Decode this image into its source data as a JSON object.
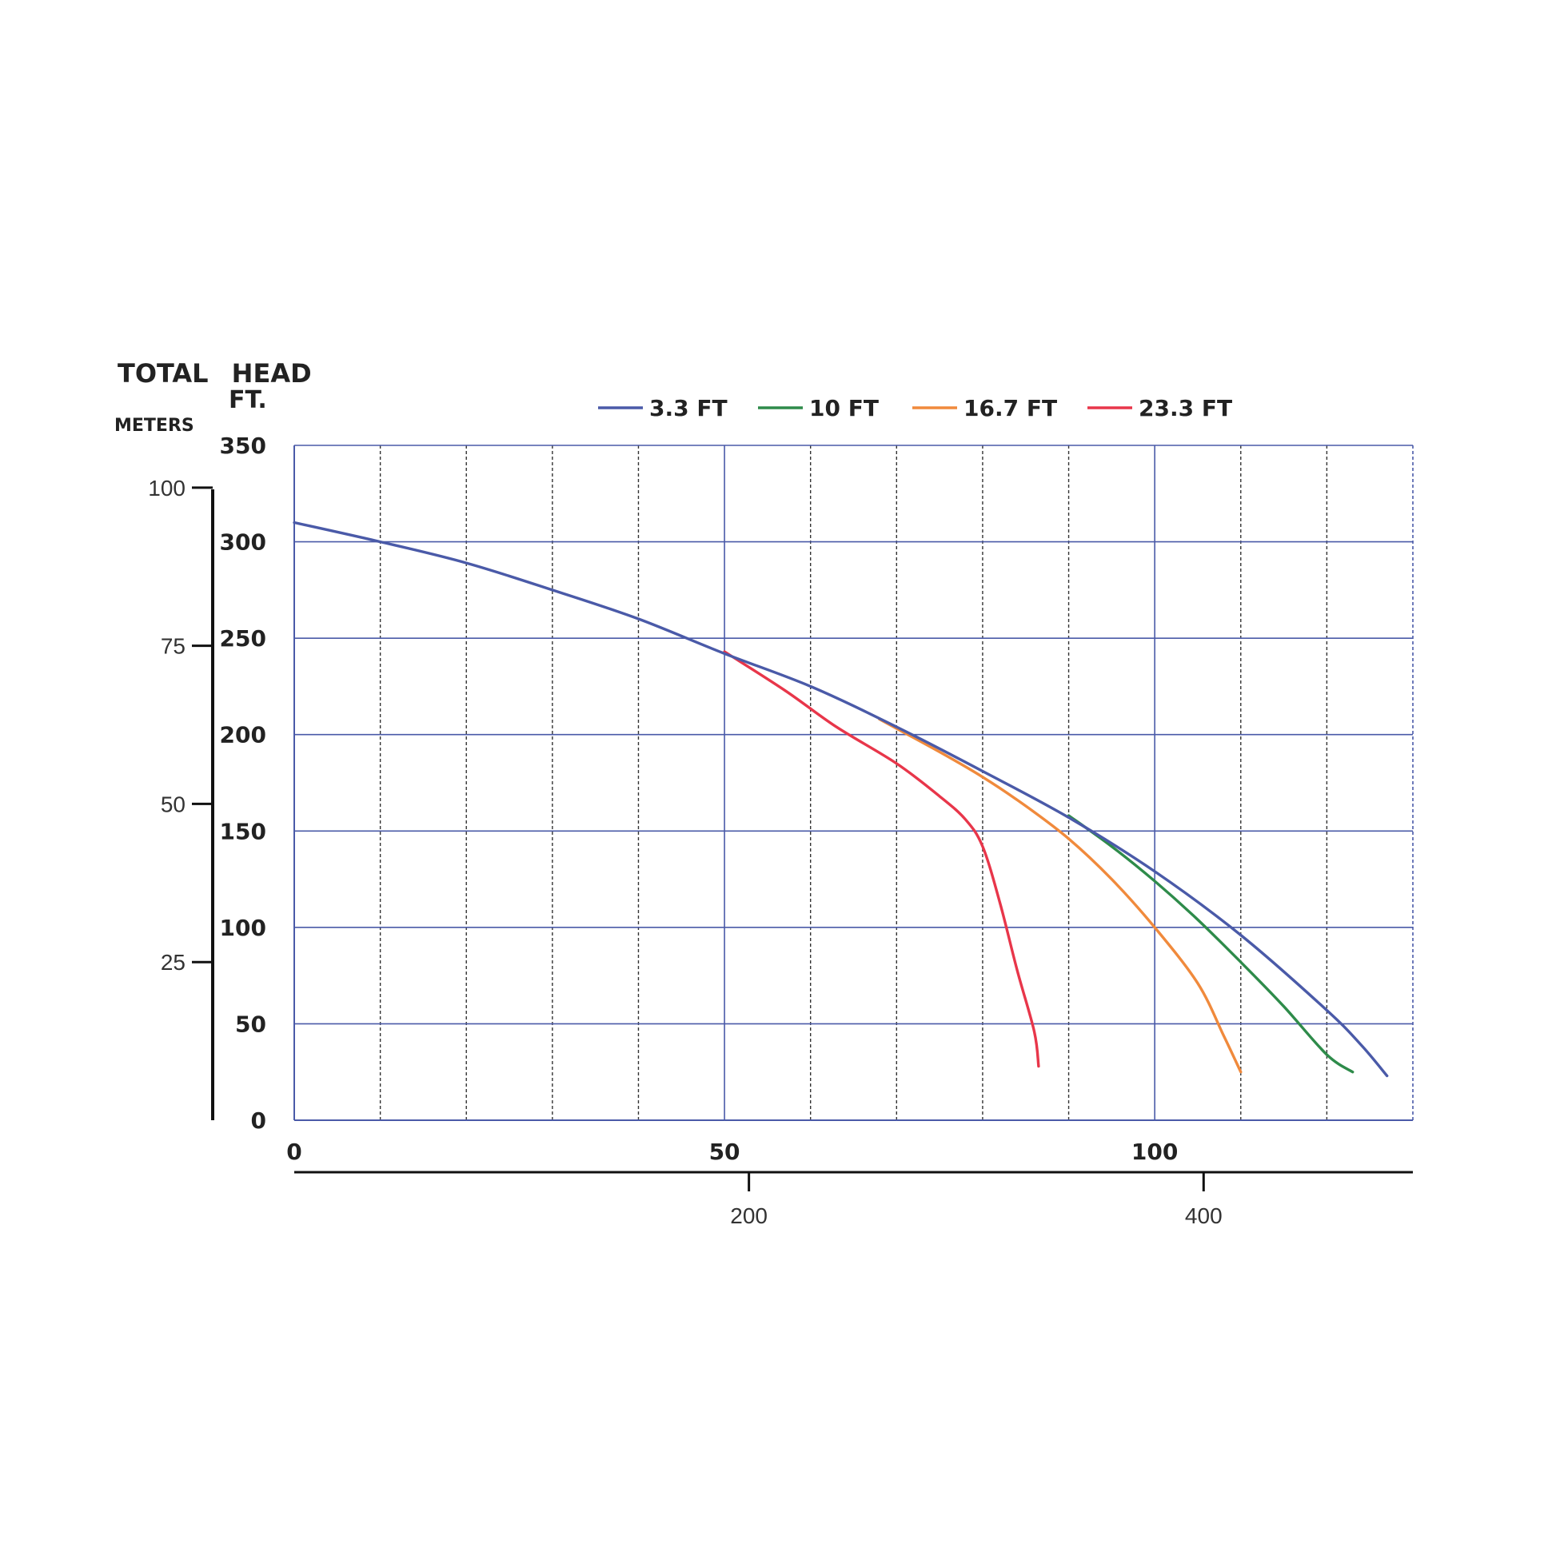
{
  "chart_data": {
    "type": "line",
    "ylabel": "TOTAL HEAD",
    "ylabel_unit_ft": "FT.",
    "ylabel_unit_m": "METERS",
    "ylim_ft": [
      0,
      350
    ],
    "yticks_ft": [
      "0",
      "50",
      "100",
      "150",
      "200",
      "250",
      "300",
      "350"
    ],
    "yticks_m": [
      "25",
      "50",
      "75",
      "100"
    ],
    "xlim": [
      0,
      130
    ],
    "xticks": [
      "0",
      "50",
      "100"
    ],
    "xticks_secondary": [
      "200",
      "400"
    ],
    "grid": true,
    "legend_position": "top",
    "series": [
      {
        "name": "3.3 FT",
        "color": "#4a5aa8",
        "x": [
          0,
          10,
          20,
          30,
          40,
          50,
          60,
          70,
          80,
          90,
          100,
          110,
          120,
          124,
          127
        ],
        "y": [
          310,
          300,
          289,
          275,
          260,
          242,
          225,
          204,
          181,
          157,
          129,
          96,
          57,
          39,
          23
        ]
      },
      {
        "name": "10 FT",
        "color": "#2e8b4a",
        "x": [
          90,
          95,
          100,
          105,
          110,
          115,
          120,
          123
        ],
        "y": [
          158,
          142,
          124,
          104,
          82,
          59,
          34,
          25
        ]
      },
      {
        "name": "16.7 FT",
        "color": "#f08a3c",
        "x": [
          68,
          75,
          80,
          85,
          90,
          95,
          100,
          105,
          108,
          110
        ],
        "y": [
          208,
          191,
          178,
          163,
          146,
          125,
          100,
          71,
          44,
          25
        ]
      },
      {
        "name": "23.3 FT",
        "color": "#e8364a",
        "x": [
          50,
          57,
          63,
          70,
          75,
          78,
          80,
          82,
          84,
          86,
          86.5
        ],
        "y": [
          243,
          223,
          204,
          185,
          168,
          156,
          142,
          113,
          78,
          46,
          28
        ]
      }
    ]
  }
}
